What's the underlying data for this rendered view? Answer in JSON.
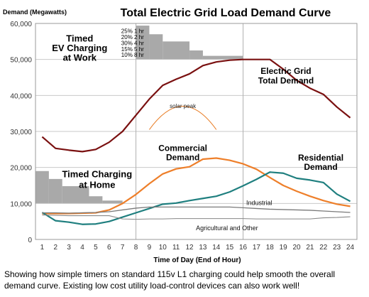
{
  "chart_data": {
    "type": "line",
    "title": "Total Electric Grid Load Demand Curve",
    "ylabel": "Demand (Megawatts)",
    "xlabel": "Time of Day (End of Hour)",
    "ylim": [
      0,
      60000
    ],
    "yticks": [
      "0",
      "10,000",
      "20,000",
      "30,000",
      "40,000",
      "50,000",
      "60,000"
    ],
    "ytick_values": [
      0,
      10000,
      20000,
      30000,
      40000,
      50000,
      60000
    ],
    "x": [
      1,
      2,
      3,
      4,
      5,
      6,
      7,
      8,
      9,
      10,
      11,
      12,
      13,
      14,
      15,
      16,
      17,
      18,
      19,
      20,
      21,
      22,
      23,
      24
    ],
    "grid": "horizontal",
    "vlines": [
      8,
      16
    ],
    "series": [
      {
        "name": "Electric Grid Total Demand",
        "color": "#7a1010",
        "values": [
          28500,
          25300,
          24800,
          24400,
          25000,
          27000,
          30000,
          34500,
          39000,
          42800,
          44500,
          46000,
          48300,
          49300,
          49800,
          50000,
          50000,
          50000,
          47300,
          44200,
          42000,
          40300,
          36800,
          33800
        ]
      },
      {
        "name": "Commercial Demand",
        "color": "#ee7f2a",
        "values": [
          7200,
          7200,
          7200,
          7300,
          7400,
          8200,
          10000,
          12500,
          15500,
          18200,
          19600,
          20200,
          22300,
          22600,
          22000,
          21000,
          19500,
          17200,
          15000,
          13400,
          12000,
          10800,
          9800,
          9200
        ]
      },
      {
        "name": "Residential Demand",
        "color": "#1f7f7f",
        "values": [
          7500,
          5200,
          4800,
          4200,
          4300,
          5000,
          6200,
          7400,
          8600,
          9800,
          10100,
          10800,
          11400,
          12000,
          13200,
          14900,
          16700,
          18700,
          18400,
          17000,
          16500,
          15800,
          12600,
          10600
        ]
      },
      {
        "name": "Industrial",
        "color": "#7a7a7a",
        "values": [
          7400,
          7400,
          7300,
          7400,
          7500,
          7700,
          8200,
          8700,
          9000,
          9000,
          9000,
          9000,
          9000,
          9000,
          9000,
          8800,
          8600,
          8400,
          8300,
          8200,
          8100,
          7900,
          7700,
          7500
        ]
      },
      {
        "name": "Agricultural and Other",
        "color": "#888888",
        "values": [
          6800,
          6700,
          6600,
          6600,
          6600,
          6600,
          5700,
          5600,
          5700,
          5700,
          5800,
          5800,
          5800,
          5800,
          5800,
          5800,
          5700,
          5700,
          5700,
          5700,
          5700,
          6000,
          6100,
          6300
        ]
      }
    ],
    "bar_groups": [
      {
        "title_lines": [
          "Timed",
          "EV Charging",
          "at Work"
        ],
        "color": "#a9a9a9",
        "legend": [
          "25%  1 hr",
          "20%  2 hr",
          "30%  4 hr",
          "15%  5 hr",
          "10%  8 hr"
        ],
        "bars": [
          {
            "start": 8,
            "end": 9,
            "top": 59400
          },
          {
            "start": 9,
            "end": 10,
            "top": 57000
          },
          {
            "start": 10,
            "end": 12,
            "top": 55000
          },
          {
            "start": 12,
            "end": 13,
            "top": 52500
          },
          {
            "start": 13,
            "end": 16,
            "top": 51000
          }
        ]
      },
      {
        "title_lines": [
          "Timed Charging",
          "at Home"
        ],
        "color": "#a9a9a9",
        "bars": [
          {
            "start": 0.5,
            "end": 1.5,
            "top": 19000
          },
          {
            "start": 1.5,
            "end": 2.5,
            "top": 16800
          },
          {
            "start": 2.5,
            "end": 4.5,
            "top": 14800
          },
          {
            "start": 4.5,
            "end": 5.5,
            "top": 12000
          },
          {
            "start": 5.5,
            "end": 7,
            "top": 10800
          }
        ]
      }
    ],
    "annotation": {
      "text": "solar peak",
      "x": 11.5,
      "y": 36500
    }
  },
  "caption": "Showing how simple timers on standard 115v L1 charging could  help smooth the overall demand curve.  Existing low cost utility load-control devices can also work well!"
}
